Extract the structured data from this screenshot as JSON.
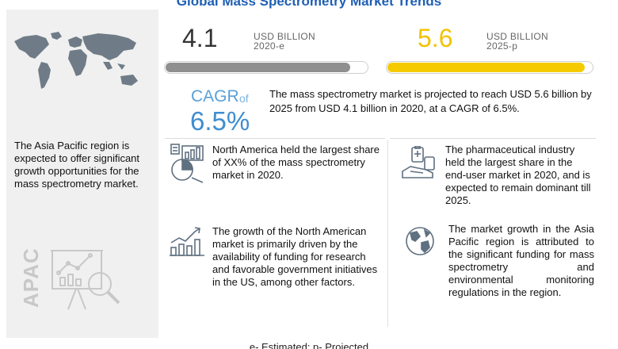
{
  "title": "Global Mass Spectrometry Market Trends",
  "chart_data": {
    "type": "bar",
    "categories": [
      "2020-e",
      "2025-p"
    ],
    "values": [
      4.1,
      5.6
    ],
    "unit": "USD BILLION",
    "colors": [
      "#8f8f8f",
      "#f5cb00"
    ]
  },
  "market": {
    "value_2020": "4.1",
    "unit_2020": "USD BILLION",
    "year_2020": "2020-e",
    "value_2025": "5.6",
    "unit_2025": "USD BILLION",
    "year_2025": "2025-p"
  },
  "cagr": {
    "label": "CAGR",
    "of": "of",
    "value": "6.5%"
  },
  "summary": "The mass spectrometry market is projected to reach USD 5.6 billion by 2025 from USD 4.1 billion in 2020, at a CAGR of 6.5%.",
  "left_panel": {
    "region_text": "The Asia Pacific region is expected to offer significant growth opportunities for the mass spectrometry market.",
    "region_label": "APAC"
  },
  "findings": [
    {
      "icon": "pie-chart-icon",
      "text": "North America held the largest share of XX% of the mass spectrometry market in 2020."
    },
    {
      "icon": "growth-chart-icon",
      "text": "The growth of the North American market is primarily driven by the availability of funding for research and favorable government initiatives in the US, among other factors."
    },
    {
      "icon": "pharma-icon",
      "text": "The pharmaceutical industry held the largest share in the end-user market in 2020, and is expected to remain dominant till 2025."
    },
    {
      "icon": "globe-icon",
      "text": "The market growth in the Asia Pacific region is attributed to the significant funding for mass spectrometry and environmental monitoring regulations in the region."
    }
  ],
  "footer": "e- Estimated; p- Projected",
  "colors": {
    "title": "#1f5fb4",
    "accent_yellow": "#f5cb00",
    "accent_blue": "#3f8dd0",
    "bar_grey": "#8f8f8f"
  }
}
